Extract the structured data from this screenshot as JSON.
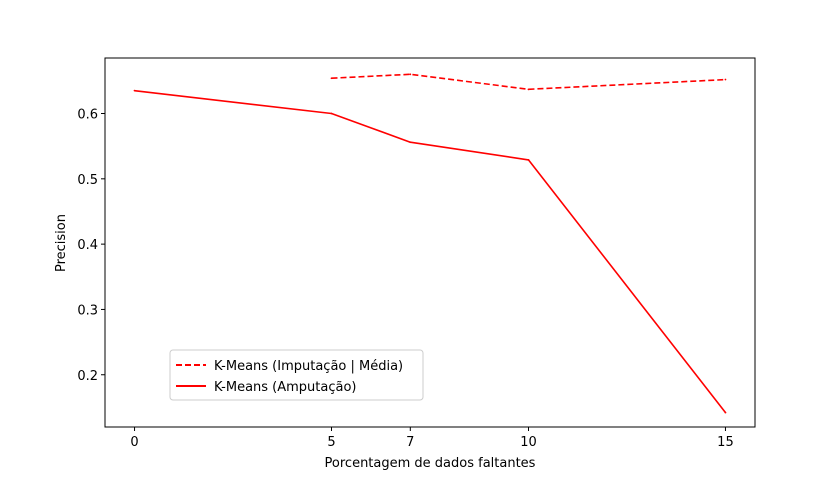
{
  "chart_data": {
    "type": "line",
    "title": "",
    "xlabel": "Porcentagem de dados faltantes",
    "ylabel": "Precision",
    "xticks": [
      0,
      5,
      7,
      10,
      15
    ],
    "yticks": [
      0.2,
      0.3,
      0.4,
      0.5,
      0.6
    ],
    "xlim": [
      -0.75,
      15.75
    ],
    "ylim": [
      0.12,
      0.685
    ],
    "grid": false,
    "legend_position": "lower-left",
    "series": [
      {
        "name": "K-Means (Imputação | Média)",
        "style": "dashed",
        "color": "#ff0000",
        "x": [
          5,
          7,
          10,
          15
        ],
        "y": [
          0.654,
          0.66,
          0.637,
          0.652
        ]
      },
      {
        "name": "K-Means (Amputação)",
        "style": "solid",
        "color": "#ff0000",
        "x": [
          0,
          5,
          7,
          10,
          15
        ],
        "y": [
          0.635,
          0.6,
          0.556,
          0.529,
          0.142
        ]
      }
    ]
  }
}
